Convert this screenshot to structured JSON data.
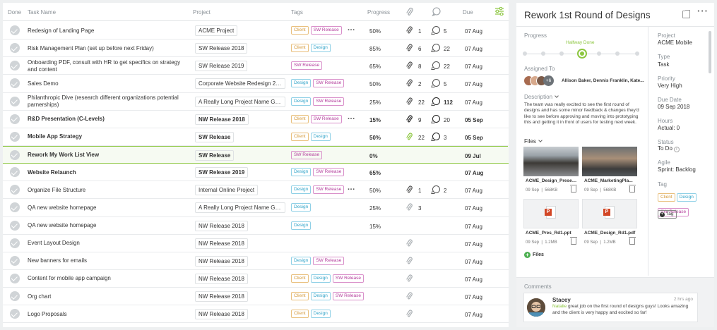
{
  "columns": {
    "done": "Done",
    "task": "Task Name",
    "project": "Project",
    "tags": "Tags",
    "progress": "Progress",
    "due": "Due"
  },
  "tag_labels": {
    "client": "Client",
    "design": "Design",
    "sw": "SW Release"
  },
  "more_label": "...",
  "tasks": [
    {
      "name": "Redesign of Landing Page",
      "project": "ACME Project",
      "tags": [
        "client",
        "sw"
      ],
      "more": true,
      "progress": "50%",
      "att": "1",
      "com": "5",
      "due": "07 Aug"
    },
    {
      "name": "Risk Management Plan (set up before next Friday)",
      "project": "SW Release 2018",
      "tags": [
        "client",
        "design"
      ],
      "progress": "85%",
      "att": "6",
      "com": "22",
      "due": "07 Aug"
    },
    {
      "name": "Onboarding PDF, consult with HR to get specifics on strategy and content",
      "project": "SW Release 2019",
      "tags": [
        "sw"
      ],
      "progress": "65%",
      "att": "8",
      "com": "22",
      "due": "07 Aug"
    },
    {
      "name": "Sales Demo",
      "project": "Corporate Website Redesign 2019",
      "tags": [
        "design",
        "sw"
      ],
      "progress": "50%",
      "att": "2",
      "com": "5",
      "due": "07 Aug"
    },
    {
      "name": "Philanthropic Dive (research different organizations potential parnerships)",
      "project": "A Really Long Project Name Go...",
      "tags": [
        "design",
        "sw"
      ],
      "progress": "25%",
      "att": "22",
      "com": "112",
      "comBold": true,
      "due": "07 Aug"
    },
    {
      "name": "R&D Presentation  (C-Levels)",
      "project": "NW Release 2018",
      "tags": [
        "client",
        "sw"
      ],
      "more": true,
      "progress": "15%",
      "att": "9",
      "com": "20",
      "due": "05 Sep",
      "bold": true
    },
    {
      "name": "Mobile App Strategy",
      "project": "SW Release",
      "tags": [
        "client",
        "design"
      ],
      "progress": "50%",
      "att": "22",
      "attGreen": true,
      "com": "3",
      "due": "05 Sep",
      "bold": true
    },
    {
      "name": "Rework My Work List View",
      "project": "SW Release",
      "tags": [
        "sw"
      ],
      "progress": "0%",
      "due": "09 Jul",
      "bold": true,
      "selected": true
    },
    {
      "name": "Website Relaunch",
      "project": "SW Release 2019",
      "tags": [
        "design",
        "sw"
      ],
      "progress": "65%",
      "due": "07 Aug",
      "bold": true
    },
    {
      "name": "Organize File Structure",
      "project": "Internal Online Project",
      "tags": [
        "design",
        "sw"
      ],
      "more": true,
      "progress": "50%",
      "att": "1",
      "com": "2",
      "due": "07 Aug"
    },
    {
      "name": "QA new website homepage",
      "project": "A Really Long Project Name Go...",
      "tags": [
        "design"
      ],
      "progress": "25%",
      "att": "3",
      "attLight": true,
      "due": "07 Aug"
    },
    {
      "name": "QA new website homepage",
      "project": "NW Release 2018",
      "tags": [
        "design"
      ],
      "progress": "15%",
      "due": "07 Aug"
    },
    {
      "name": "Event Layout Design",
      "project": "NW Release 2018",
      "tags": [],
      "progress": "",
      "attIcon": true,
      "due": "07 Aug"
    },
    {
      "name": "New banners for emails",
      "project": "NW Release 2018",
      "tags": [
        "design",
        "sw"
      ],
      "progress": "",
      "attIcon": true,
      "due": "07 Aug"
    },
    {
      "name": "Content for mobile app campaign",
      "project": "NW Release 2018",
      "tags": [
        "client",
        "design",
        "sw"
      ],
      "progress": "",
      "attIcon": true,
      "due": "07 Aug"
    },
    {
      "name": "Org chart",
      "project": "NW Release 2018",
      "tags": [
        "client",
        "design",
        "sw"
      ],
      "progress": "",
      "attIcon": true,
      "due": "07 Aug"
    },
    {
      "name": "Logo Proposals",
      "project": "NW Release 2018",
      "tags": [
        "client",
        "design"
      ],
      "progress": "",
      "attIcon": true,
      "due": "07 Aug"
    }
  ],
  "detail": {
    "title": "Rework 1st Round of Designs",
    "progress_label": "Progress",
    "progress_state": "Halfway Done",
    "progress_fraction": 0.5,
    "assigned_label": "Assigned To",
    "assigned_extra": "+6",
    "assigned_names": "Allison Baker, Dennis Franklin, Kate...",
    "description_label": "Description",
    "description": "The team was really excited to see the first round of designs and has some minor feedback & changes they'd like to see before approving and moving into prototyping this and getting it in front of users for testing next week.",
    "files_label": "Files",
    "files": [
      {
        "name": "ACME_Design_Presen...",
        "date": "09 Sep",
        "size": "568KB"
      },
      {
        "name": "ACME_MarketingPla...",
        "date": "09 Sep",
        "size": "568KB"
      },
      {
        "name": "ACME_Pres_Rd1.ppt",
        "date": "09 Sep",
        "size": "1.2MB"
      },
      {
        "name": "ACME_Design_Rd1.pdf",
        "date": "09 Sep",
        "size": "1.2MB"
      }
    ],
    "add_files_label": "Files",
    "project_label": "Project",
    "project": "ACME Mobile",
    "type_label": "Type",
    "type": "Task",
    "priority_label": "Priority",
    "priority": "Very High",
    "due_label": "Due Date",
    "due": "09 Sep 2018",
    "hours_label": "Hours",
    "hours": "Actual: 0",
    "status_label": "Status",
    "status": "To Do",
    "agile_label": "Agile",
    "agile": "Sprint: Backlog",
    "tag_label": "Tag",
    "tag_add_label": "Tag",
    "comments_label": "Comments",
    "comment": {
      "author": "Stacey",
      "time": "2 hrs ago",
      "mention": "Natalie",
      "text": " great job on the first round of designs guys! Looks amazing and the client is very happy and excited so far!"
    }
  },
  "colors": {
    "accent": "#8cc63f",
    "client": "#d59a3b",
    "design": "#2fa3c9",
    "sw": "#b33b9b"
  }
}
